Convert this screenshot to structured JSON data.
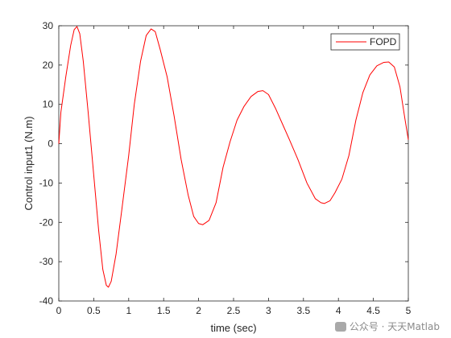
{
  "chart_data": {
    "type": "line",
    "xlabel": "time (sec)",
    "ylabel": "Control input1 (N.m)",
    "xlim": [
      0,
      5
    ],
    "ylim": [
      -40,
      30
    ],
    "xticks": [
      "0",
      "0.5",
      "1",
      "1.5",
      "2",
      "2.5",
      "3",
      "3.5",
      "4",
      "4.5",
      "5"
    ],
    "yticks": [
      "-40",
      "-30",
      "-20",
      "-10",
      "0",
      "10",
      "20",
      "30"
    ],
    "grid": false,
    "legend": "top-right",
    "series": [
      {
        "name": "FOPD",
        "color": "#ff0000",
        "points": [
          [
            0.0,
            0.0
          ],
          [
            0.03,
            8.0
          ],
          [
            0.1,
            17.0
          ],
          [
            0.17,
            25.0
          ],
          [
            0.22,
            29.0
          ],
          [
            0.26,
            29.8
          ],
          [
            0.3,
            28.0
          ],
          [
            0.35,
            21.0
          ],
          [
            0.42,
            8.0
          ],
          [
            0.5,
            -8.0
          ],
          [
            0.57,
            -22.0
          ],
          [
            0.63,
            -32.0
          ],
          [
            0.68,
            -36.0
          ],
          [
            0.71,
            -36.5
          ],
          [
            0.75,
            -35.0
          ],
          [
            0.82,
            -28.0
          ],
          [
            0.9,
            -17.0
          ],
          [
            1.0,
            -3.0
          ],
          [
            1.08,
            10.0
          ],
          [
            1.17,
            21.0
          ],
          [
            1.25,
            27.5
          ],
          [
            1.32,
            29.2
          ],
          [
            1.38,
            28.5
          ],
          [
            1.45,
            24.0
          ],
          [
            1.55,
            17.0
          ],
          [
            1.65,
            7.0
          ],
          [
            1.75,
            -4.0
          ],
          [
            1.85,
            -13.0
          ],
          [
            1.93,
            -18.5
          ],
          [
            2.0,
            -20.3
          ],
          [
            2.06,
            -20.6
          ],
          [
            2.15,
            -19.5
          ],
          [
            2.25,
            -15.0
          ],
          [
            2.35,
            -6.0
          ],
          [
            2.45,
            0.5
          ],
          [
            2.55,
            6.0
          ],
          [
            2.65,
            9.5
          ],
          [
            2.75,
            12.0
          ],
          [
            2.85,
            13.3
          ],
          [
            2.92,
            13.5
          ],
          [
            3.0,
            12.5
          ],
          [
            3.1,
            9.0
          ],
          [
            3.2,
            5.0
          ],
          [
            3.3,
            1.0
          ],
          [
            3.42,
            -4.0
          ],
          [
            3.55,
            -10.0
          ],
          [
            3.67,
            -14.0
          ],
          [
            3.75,
            -15.0
          ],
          [
            3.8,
            -15.2
          ],
          [
            3.88,
            -14.5
          ],
          [
            3.95,
            -12.5
          ],
          [
            4.05,
            -9.0
          ],
          [
            4.15,
            -3.0
          ],
          [
            4.25,
            6.0
          ],
          [
            4.35,
            13.0
          ],
          [
            4.45,
            17.5
          ],
          [
            4.55,
            19.8
          ],
          [
            4.65,
            20.7
          ],
          [
            4.72,
            20.8
          ],
          [
            4.8,
            19.5
          ],
          [
            4.88,
            14.5
          ],
          [
            4.95,
            6.5
          ],
          [
            5.0,
            1.0
          ]
        ]
      }
    ]
  },
  "watermark": {
    "text": "公众号 · 天天Matlab",
    "icon": "wechat-icon"
  }
}
